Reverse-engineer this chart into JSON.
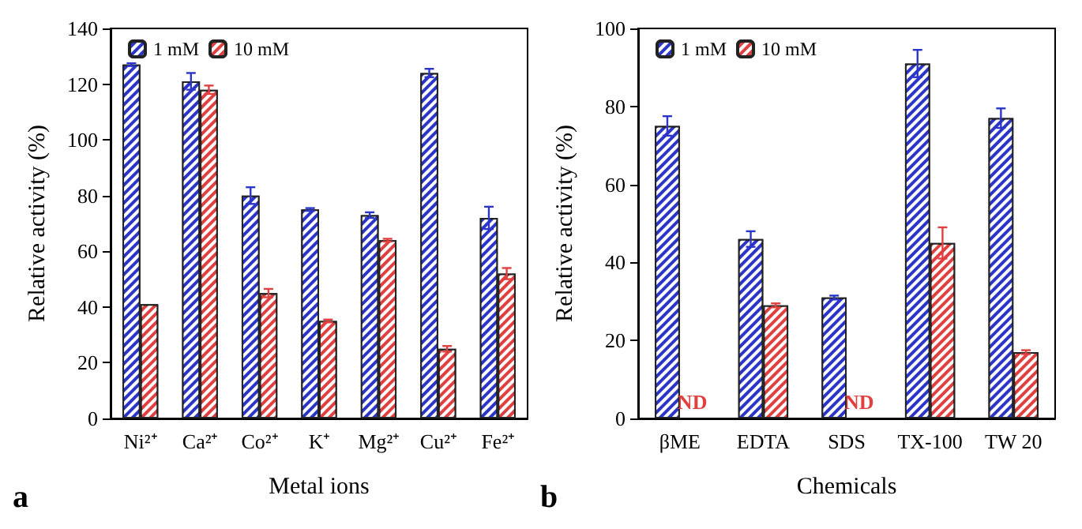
{
  "chart_data": [
    {
      "type": "bar",
      "xlabel": "Metal ions",
      "ylabel": "Relative activity (%)",
      "annotations": [
        "a"
      ],
      "categories": [
        "Ni²⁺",
        "Ca²⁺",
        "Co²⁺",
        "K⁺",
        "Mg²⁺",
        "Cu²⁺",
        "Fe²⁺"
      ],
      "series": [
        {
          "name": "1 mM",
          "color": "#2b35c8",
          "values": [
            127,
            121,
            80,
            75,
            73,
            124,
            72
          ],
          "errors": [
            0.5,
            3,
            3,
            0.5,
            1,
            1.5,
            4
          ]
        },
        {
          "name": "10 mM",
          "color": "#e0403f",
          "values": [
            41,
            118,
            45,
            35,
            64,
            25,
            52
          ],
          "errors": [
            null,
            1.5,
            1.5,
            0.5,
            0.5,
            1,
            2
          ]
        }
      ],
      "ylim": [
        0,
        140
      ],
      "yticks": [
        0,
        20,
        40,
        60,
        80,
        100,
        120,
        140
      ],
      "grid": false,
      "legend": "top left"
    },
    {
      "type": "bar",
      "xlabel": "Chemicals",
      "ylabel": "Relative activity (%)",
      "annotations": [
        "b"
      ],
      "categories": [
        "βME",
        "EDTA",
        "SDS",
        "TX-100",
        "TW 20"
      ],
      "series": [
        {
          "name": "1 mM",
          "color": "#2b35c8",
          "values": [
            75,
            46,
            31,
            91,
            77
          ],
          "errors": [
            2.5,
            2,
            0.5,
            3.5,
            2.5
          ]
        },
        {
          "name": "10 mM",
          "color": "#e0403f",
          "values": [
            null,
            29,
            null,
            45,
            17
          ],
          "errors": [
            null,
            0.5,
            null,
            4,
            0.5
          ],
          "value_labels": [
            "ND",
            null,
            "ND",
            null,
            null
          ]
        }
      ],
      "ylim": [
        0,
        100
      ],
      "yticks": [
        0,
        20,
        40,
        60,
        80,
        100
      ],
      "grid": false,
      "legend": "top left"
    }
  ]
}
